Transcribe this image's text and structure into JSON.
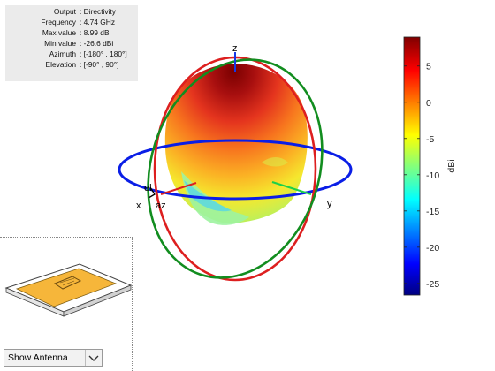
{
  "info": {
    "rows": [
      {
        "label": "Output",
        "value": ": Directivity"
      },
      {
        "label": "Frequency",
        "value": ": 4.74 GHz"
      },
      {
        "label": "Max value",
        "value": ": 8.99 dBi"
      },
      {
        "label": "Min value",
        "value": ": -26.6 dBi"
      },
      {
        "label": "Azimuth",
        "value": ": [-180° , 180°]"
      },
      {
        "label": "Elevation",
        "value": ": [-90° , 90°]"
      }
    ]
  },
  "axes": {
    "z": "z",
    "y": "y",
    "x": "x",
    "el": "el",
    "az": "az"
  },
  "colorbar": {
    "label": "dBi",
    "ticks": [
      "5",
      "0",
      "-5",
      "-10",
      "-15",
      "-20",
      "-25"
    ],
    "min": -26.6,
    "max": 8.99,
    "tick_values": [
      5,
      0,
      -5,
      -10,
      -15,
      -20,
      -25
    ]
  },
  "colors": {
    "azimuth_ring": "#0a1ee6",
    "elevation_ring_xz": "#dd1f1f",
    "elevation_ring_yz": "#128d1f",
    "patch": "#f6b63a"
  },
  "antenna_view": {
    "selected": "Show Antenna"
  }
}
